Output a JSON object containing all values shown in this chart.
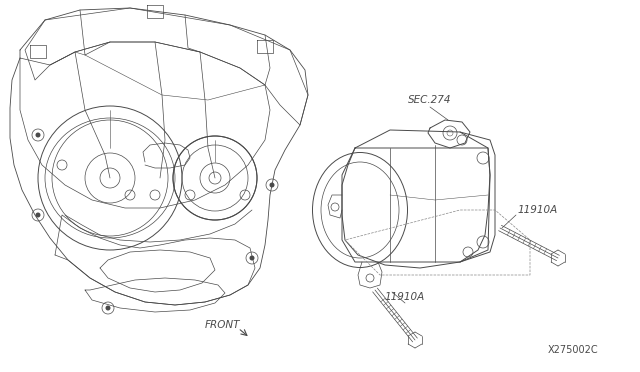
{
  "background_color": "#ffffff",
  "line_color": "#4a4a4a",
  "fig_width": 6.4,
  "fig_height": 3.72,
  "dpi": 100,
  "labels": {
    "sec274": "SEC.274",
    "bolt1": "11910A",
    "bolt2": "11910A",
    "front": "FRONT",
    "diagram_id": "X275002C"
  }
}
